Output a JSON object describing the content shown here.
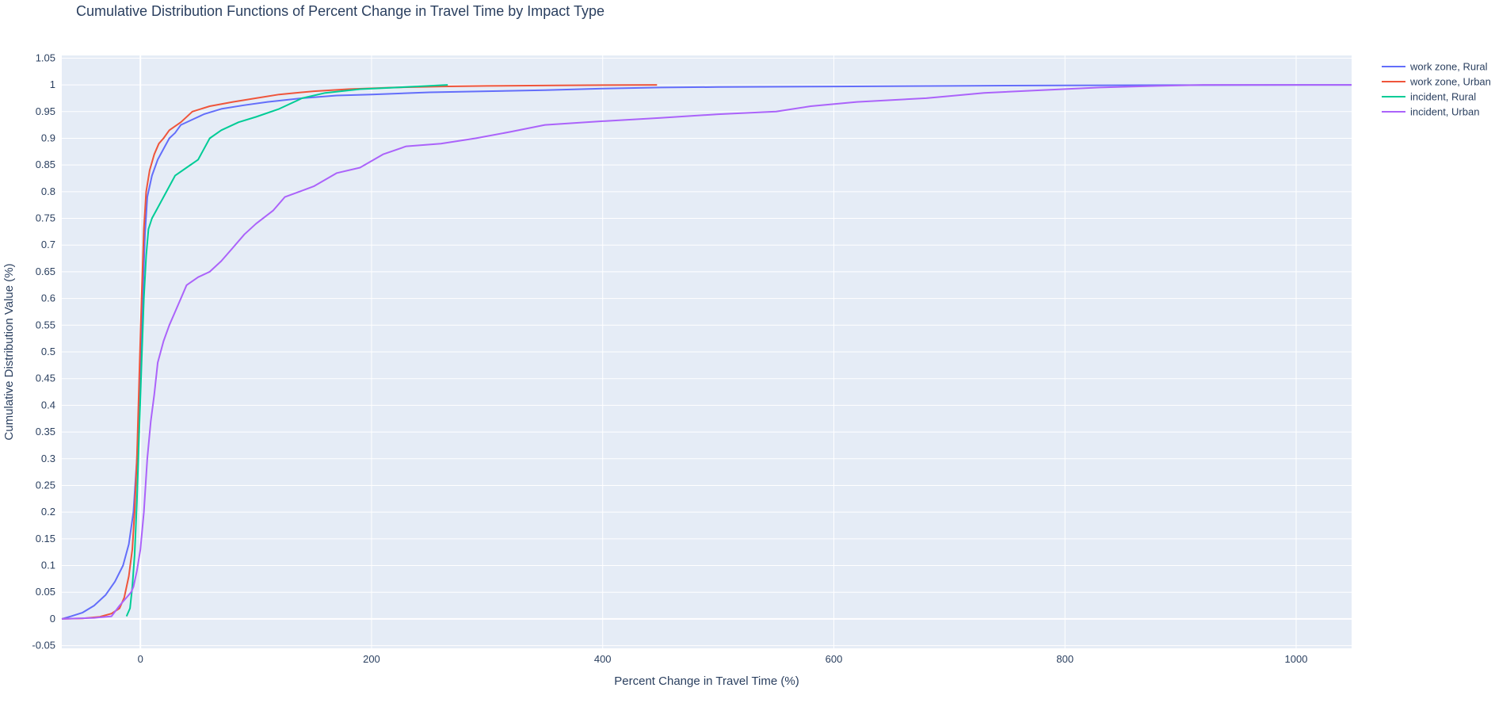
{
  "chart_data": {
    "type": "line",
    "title": "Cumulative Distribution Functions of Percent Change in Travel Time by Impact Type",
    "xlabel": "Percent Change in Travel Time (%)",
    "ylabel": "Cumulative Distribution Value (%)",
    "xlim": [
      -68,
      1048
    ],
    "ylim": [
      -0.055,
      1.055
    ],
    "x_ticks": [
      0,
      200,
      400,
      600,
      800,
      1000
    ],
    "y_ticks": [
      -0.05,
      0,
      0.05,
      0.1,
      0.15,
      0.2,
      0.25,
      0.3,
      0.35,
      0.4,
      0.45,
      0.5,
      0.55,
      0.6,
      0.65,
      0.7,
      0.75,
      0.8,
      0.85,
      0.9,
      0.95,
      1,
      1.05
    ],
    "grid": true,
    "legend_position": "top-right",
    "plot_background": "#e5ecf6",
    "series": [
      {
        "name": "work zone, Rural",
        "color": "#636efa",
        "points": [
          [
            -68,
            0
          ],
          [
            -60,
            0.005
          ],
          [
            -50,
            0.012
          ],
          [
            -40,
            0.025
          ],
          [
            -30,
            0.045
          ],
          [
            -22,
            0.07
          ],
          [
            -15,
            0.1
          ],
          [
            -10,
            0.14
          ],
          [
            -6,
            0.2
          ],
          [
            -3,
            0.3
          ],
          [
            0,
            0.45
          ],
          [
            2,
            0.6
          ],
          [
            4,
            0.72
          ],
          [
            6,
            0.79
          ],
          [
            10,
            0.83
          ],
          [
            15,
            0.86
          ],
          [
            20,
            0.88
          ],
          [
            25,
            0.9
          ],
          [
            30,
            0.91
          ],
          [
            35,
            0.925
          ],
          [
            45,
            0.935
          ],
          [
            55,
            0.945
          ],
          [
            70,
            0.955
          ],
          [
            90,
            0.962
          ],
          [
            110,
            0.968
          ],
          [
            140,
            0.975
          ],
          [
            170,
            0.98
          ],
          [
            200,
            0.982
          ],
          [
            250,
            0.986
          ],
          [
            300,
            0.988
          ],
          [
            350,
            0.99
          ],
          [
            400,
            0.993
          ],
          [
            450,
            0.995
          ],
          [
            500,
            0.996
          ],
          [
            600,
            0.997
          ],
          [
            700,
            0.998
          ],
          [
            800,
            0.999
          ],
          [
            900,
            0.9995
          ],
          [
            1048,
            1
          ]
        ]
      },
      {
        "name": "work zone, Urban",
        "color": "#ef553b",
        "points": [
          [
            -68,
            0
          ],
          [
            -50,
            0.001
          ],
          [
            -35,
            0.004
          ],
          [
            -25,
            0.01
          ],
          [
            -18,
            0.02
          ],
          [
            -14,
            0.04
          ],
          [
            -10,
            0.08
          ],
          [
            -7,
            0.13
          ],
          [
            -5,
            0.2
          ],
          [
            -3,
            0.3
          ],
          [
            -1,
            0.45
          ],
          [
            1,
            0.6
          ],
          [
            3,
            0.73
          ],
          [
            5,
            0.8
          ],
          [
            8,
            0.84
          ],
          [
            12,
            0.87
          ],
          [
            16,
            0.89
          ],
          [
            20,
            0.9
          ],
          [
            25,
            0.915
          ],
          [
            35,
            0.93
          ],
          [
            45,
            0.95
          ],
          [
            60,
            0.96
          ],
          [
            80,
            0.968
          ],
          [
            100,
            0.975
          ],
          [
            120,
            0.982
          ],
          [
            150,
            0.988
          ],
          [
            180,
            0.992
          ],
          [
            220,
            0.995
          ],
          [
            260,
            0.997
          ],
          [
            300,
            0.998
          ],
          [
            360,
            0.999
          ],
          [
            447,
            1
          ]
        ]
      },
      {
        "name": "incident, Rural",
        "color": "#00cc96",
        "points": [
          [
            -12,
            0.005
          ],
          [
            -9,
            0.02
          ],
          [
            -7,
            0.06
          ],
          [
            -5,
            0.12
          ],
          [
            -3,
            0.22
          ],
          [
            -1,
            0.35
          ],
          [
            1,
            0.48
          ],
          [
            3,
            0.6
          ],
          [
            5,
            0.68
          ],
          [
            7,
            0.73
          ],
          [
            10,
            0.75
          ],
          [
            15,
            0.77
          ],
          [
            20,
            0.79
          ],
          [
            25,
            0.81
          ],
          [
            30,
            0.83
          ],
          [
            40,
            0.845
          ],
          [
            50,
            0.86
          ],
          [
            60,
            0.9
          ],
          [
            70,
            0.915
          ],
          [
            85,
            0.93
          ],
          [
            100,
            0.94
          ],
          [
            120,
            0.955
          ],
          [
            140,
            0.975
          ],
          [
            160,
            0.985
          ],
          [
            190,
            0.992
          ],
          [
            230,
            0.996
          ],
          [
            266,
            1
          ]
        ]
      },
      {
        "name": "incident, Urban",
        "color": "#ab63fa",
        "points": [
          [
            -68,
            0
          ],
          [
            -40,
            0.002
          ],
          [
            -25,
            0.005
          ],
          [
            -18,
            0.025
          ],
          [
            -12,
            0.04
          ],
          [
            -8,
            0.05
          ],
          [
            -6,
            0.06
          ],
          [
            -3,
            0.09
          ],
          [
            0,
            0.13
          ],
          [
            3,
            0.2
          ],
          [
            6,
            0.3
          ],
          [
            9,
            0.37
          ],
          [
            12,
            0.42
          ],
          [
            15,
            0.48
          ],
          [
            20,
            0.52
          ],
          [
            25,
            0.55
          ],
          [
            30,
            0.575
          ],
          [
            35,
            0.6
          ],
          [
            40,
            0.625
          ],
          [
            50,
            0.64
          ],
          [
            60,
            0.65
          ],
          [
            70,
            0.67
          ],
          [
            80,
            0.695
          ],
          [
            90,
            0.72
          ],
          [
            100,
            0.74
          ],
          [
            115,
            0.765
          ],
          [
            125,
            0.79
          ],
          [
            150,
            0.81
          ],
          [
            170,
            0.835
          ],
          [
            190,
            0.845
          ],
          [
            210,
            0.87
          ],
          [
            230,
            0.885
          ],
          [
            260,
            0.89
          ],
          [
            290,
            0.9
          ],
          [
            320,
            0.912
          ],
          [
            350,
            0.925
          ],
          [
            400,
            0.932
          ],
          [
            450,
            0.938
          ],
          [
            500,
            0.945
          ],
          [
            550,
            0.95
          ],
          [
            580,
            0.96
          ],
          [
            620,
            0.968
          ],
          [
            680,
            0.975
          ],
          [
            730,
            0.985
          ],
          [
            780,
            0.99
          ],
          [
            830,
            0.995
          ],
          [
            880,
            0.998
          ],
          [
            920,
            1
          ],
          [
            1048,
            1
          ]
        ]
      }
    ]
  }
}
